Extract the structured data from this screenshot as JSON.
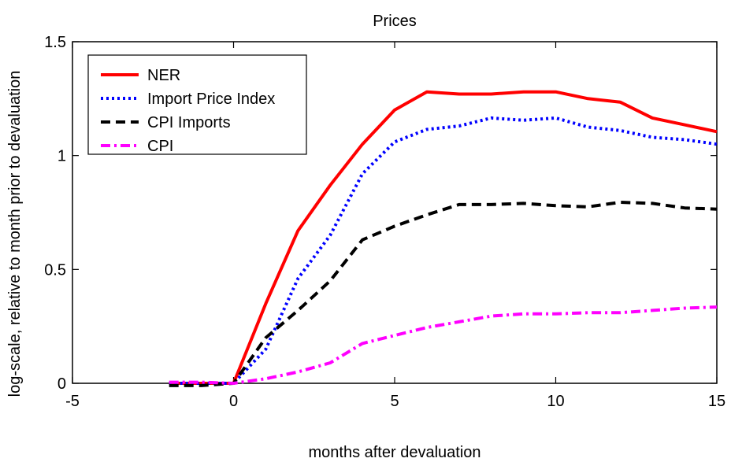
{
  "chart_data": {
    "type": "line",
    "title": "Prices",
    "xlabel": "months after devaluation",
    "ylabel": "log-scale, relative to month prior to devaluation",
    "xlim": [
      -5,
      15
    ],
    "ylim": [
      0,
      1.5
    ],
    "xticks": [
      -5,
      0,
      5,
      10,
      15
    ],
    "xtick_labels": [
      "-5",
      "0",
      "5",
      "10",
      "15"
    ],
    "yticks": [
      0,
      0.5,
      1,
      1.5
    ],
    "ytick_labels": [
      "0",
      "0.5",
      "1",
      "1.5"
    ],
    "grid": false,
    "legend_position": "top-left",
    "series": [
      {
        "name": "NER",
        "color": "#ff0000",
        "style": "solid",
        "x": [
          -2,
          -1,
          0,
          1,
          2,
          3,
          4,
          5,
          6,
          7,
          8,
          9,
          10,
          11,
          12,
          13,
          14,
          15
        ],
        "y": [
          0.0,
          0.0,
          0.0,
          0.35,
          0.67,
          0.87,
          1.05,
          1.2,
          1.28,
          1.27,
          1.27,
          1.28,
          1.28,
          1.25,
          1.235,
          1.165,
          1.135,
          1.105
        ]
      },
      {
        "name": "Import Price Index",
        "color": "#0000ff",
        "style": "dotted",
        "x": [
          -2,
          -1,
          0,
          1,
          2,
          3,
          4,
          5,
          6,
          7,
          8,
          9,
          10,
          11,
          12,
          13,
          14,
          15
        ],
        "y": [
          0.0,
          0.0,
          0.0,
          0.15,
          0.46,
          0.65,
          0.92,
          1.06,
          1.115,
          1.13,
          1.165,
          1.155,
          1.165,
          1.125,
          1.11,
          1.08,
          1.07,
          1.05
        ]
      },
      {
        "name": "CPI Imports",
        "color": "#000000",
        "style": "dashed",
        "x": [
          -2,
          -1,
          0,
          1,
          2,
          3,
          4,
          5,
          6,
          7,
          8,
          9,
          10,
          11,
          12,
          13,
          14,
          15
        ],
        "y": [
          -0.01,
          -0.01,
          0.0,
          0.2,
          0.32,
          0.45,
          0.63,
          0.69,
          0.74,
          0.785,
          0.785,
          0.79,
          0.78,
          0.775,
          0.795,
          0.79,
          0.77,
          0.765
        ]
      },
      {
        "name": "CPI",
        "color": "#ff00ff",
        "style": "dashdot",
        "x": [
          -2,
          -1,
          0,
          1,
          2,
          3,
          4,
          5,
          6,
          7,
          8,
          9,
          10,
          11,
          12,
          13,
          14,
          15
        ],
        "y": [
          0.005,
          0.005,
          0.0,
          0.02,
          0.05,
          0.09,
          0.175,
          0.21,
          0.245,
          0.27,
          0.295,
          0.305,
          0.305,
          0.31,
          0.31,
          0.32,
          0.33,
          0.335
        ]
      }
    ]
  }
}
